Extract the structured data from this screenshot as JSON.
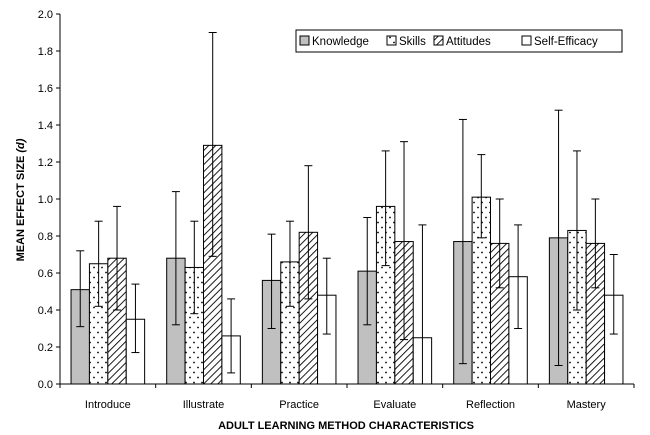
{
  "chart_data": {
    "type": "bar",
    "title": "",
    "xlabel": "ADULT LEARNING METHOD CHARACTERISTICS",
    "ylabel": "MEAN EFFECT SIZE",
    "ylabel_symbol": "(d)",
    "ylim": [
      0,
      2.0
    ],
    "yticks": [
      "0.0",
      "0.2",
      "0.4",
      "0.6",
      "0.8",
      "1.0",
      "1.2",
      "1.4",
      "1.6",
      "1.8",
      "2.0"
    ],
    "grid": false,
    "legend_position": "top-right",
    "categories": [
      "Introduce",
      "Illustrate",
      "Practice",
      "Evaluate",
      "Reflection",
      "Mastery"
    ],
    "series": [
      {
        "name": "Knowledge",
        "pattern": "solid",
        "color": "#c0c0c0",
        "values": [
          0.51,
          0.68,
          0.56,
          0.61,
          0.77,
          0.79
        ],
        "error_low": [
          0.31,
          0.32,
          0.3,
          0.32,
          0.11,
          0.1
        ],
        "error_high": [
          0.72,
          1.04,
          0.81,
          0.9,
          1.43,
          1.48
        ]
      },
      {
        "name": "Skills",
        "pattern": "dots",
        "color": "#ffffff",
        "values": [
          0.65,
          0.63,
          0.66,
          0.96,
          1.01,
          0.83
        ],
        "error_low": [
          0.42,
          0.38,
          0.42,
          0.64,
          0.79,
          0.4
        ],
        "error_high": [
          0.88,
          0.88,
          0.88,
          1.26,
          1.24,
          1.26
        ]
      },
      {
        "name": "Attitudes",
        "pattern": "hatch",
        "color": "#ffffff",
        "values": [
          0.68,
          1.29,
          0.82,
          0.77,
          0.76,
          0.76
        ],
        "error_low": [
          0.4,
          0.69,
          0.46,
          0.24,
          0.52,
          0.52
        ],
        "error_high": [
          0.96,
          1.9,
          1.18,
          1.31,
          1.0,
          1.0
        ]
      },
      {
        "name": "Self-Efficacy",
        "pattern": "blank",
        "color": "#ffffff",
        "values": [
          0.35,
          0.26,
          0.48,
          0.25,
          0.58,
          0.48
        ],
        "error_low": [
          0.17,
          0.06,
          0.27,
          0.0,
          0.3,
          0.27
        ],
        "error_high": [
          0.54,
          0.46,
          0.68,
          0.86,
          0.86,
          0.7
        ]
      }
    ]
  }
}
